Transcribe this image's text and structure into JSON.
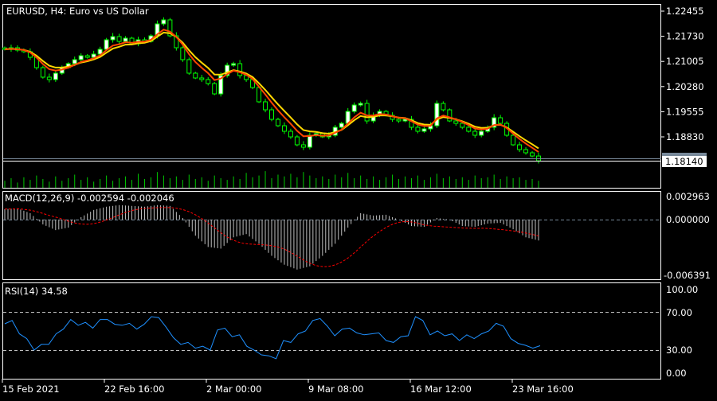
{
  "colors": {
    "background": "#000000",
    "frame": "#ffffff",
    "candle": "#00ff00",
    "bull_body": "#ffffff",
    "bear_body": "#000000",
    "ma_fast": "#ff4500",
    "ma_slow": "#ffd700",
    "volume": "#00c800",
    "macd_hist": "#c0c0c0",
    "macd_signal": "#ff0000",
    "rsi": "#1e90ff",
    "level": "#c0c0c0"
  },
  "header": {
    "title": "EURUSD, H4:  Euro vs US Dollar"
  },
  "chart_data": [
    {
      "type": "candlestick",
      "title": "EURUSD, H4:  Euro vs US Dollar",
      "ylim": [
        1.1814,
        1.2268
      ],
      "y_ticks": [
        "1.22455",
        "1.21730",
        "1.21005",
        "1.20280",
        "1.19555",
        "1.18830"
      ],
      "current_price": "1.18140",
      "current_price_value": 1.1814,
      "closes": [
        1.21354,
        1.214,
        1.21331,
        1.21285,
        1.21124,
        1.20826,
        1.20551,
        1.20482,
        1.20666,
        1.20826,
        1.20941,
        1.21056,
        1.2117,
        1.21124,
        1.21216,
        1.21354,
        1.21629,
        1.21721,
        1.21583,
        1.21675,
        1.21514,
        1.21629,
        1.21583,
        1.21744,
        1.22088,
        1.22203,
        1.21744,
        1.214,
        1.21056,
        1.20666,
        1.20528,
        1.20482,
        1.20367,
        1.20069,
        1.20597,
        1.20895,
        1.20941,
        1.20597,
        1.20482,
        1.20253,
        1.1984,
        1.1961,
        1.19335,
        1.19151,
        1.18991,
        1.1883,
        1.18601,
        1.18532,
        1.18876,
        1.18922,
        1.1883,
        1.18876,
        1.19106,
        1.1922,
        1.19564,
        1.19748,
        1.19794,
        1.19289,
        1.1945,
        1.19564,
        1.1945,
        1.19335,
        1.19289,
        1.19335,
        1.19106,
        1.18991,
        1.1906,
        1.19151,
        1.19794,
        1.1961,
        1.19289,
        1.1922,
        1.19106,
        1.18991,
        1.18876,
        1.18991,
        1.19106,
        1.19381,
        1.1922,
        1.18876,
        1.18601,
        1.18463,
        1.18371,
        1.18278,
        1.1814
      ],
      "volume_levels_pct": [
        40,
        55,
        30,
        60,
        45,
        70,
        50,
        35,
        65,
        40,
        55,
        75,
        45,
        60,
        35,
        50,
        70,
        40,
        55,
        65,
        45,
        80,
        50,
        60,
        90,
        70,
        55,
        65,
        45,
        75,
        50,
        60,
        40,
        70,
        55,
        45,
        65,
        50,
        85,
        60,
        70,
        95,
        55,
        75,
        65,
        80,
        60,
        90,
        70,
        55,
        65,
        50,
        75,
        60,
        85,
        55,
        70,
        50,
        65,
        45,
        60,
        75,
        50,
        65,
        55,
        70,
        45,
        60,
        80,
        55,
        65,
        50,
        60,
        45,
        70,
        55,
        60,
        75,
        50,
        65,
        55,
        60,
        45,
        50,
        40
      ],
      "moving_averages": [
        {
          "kind": "fast"
        },
        {
          "kind": "slow"
        }
      ]
    },
    {
      "type": "bar",
      "label": "MACD(12,26,9) -0.002594 -0.002046",
      "ylim": [
        -0.006391,
        0.002963
      ],
      "y_ticks": [
        "0.002963",
        "0.000000",
        "-0.006391"
      ],
      "main": [
        0.0013,
        0.0014,
        0.0008,
        -0.0006,
        -0.0013,
        -0.001,
        0.0003,
        0.0012,
        0.0016,
        0.0018,
        0.0017,
        0.0016,
        0.0018,
        0.0017,
        0.0002,
        -0.002,
        -0.0034,
        -0.0036,
        -0.0022,
        -0.0018,
        -0.003,
        -0.0045,
        -0.0056,
        -0.0062,
        -0.0058,
        -0.0045,
        -0.003,
        -0.001,
        0.0008,
        0.0005,
        0.0006,
        0.0,
        -0.0008,
        -0.0009,
        0.0002,
        0.0,
        -0.0008,
        -0.0009,
        -0.0005,
        -0.0004,
        -0.0012,
        -0.0022,
        -0.002594
      ],
      "signal_last": -0.002046
    },
    {
      "type": "line",
      "label": "RSI(14) 34.58",
      "ylim": [
        0,
        100
      ],
      "y_ticks": [
        "100.00",
        "70.00",
        "30.00",
        "0.00"
      ],
      "levels": [
        70,
        30
      ],
      "values": [
        57.5,
        61,
        47,
        42,
        30,
        36,
        36,
        47,
        52,
        62,
        56,
        59,
        53,
        62,
        62,
        57,
        56,
        58,
        52,
        57,
        65,
        64,
        54,
        43,
        36,
        38,
        32,
        34,
        30,
        51,
        53,
        44,
        46,
        34,
        30,
        25,
        24,
        21,
        40,
        38,
        47,
        50,
        61,
        63,
        55,
        45,
        52,
        53,
        48,
        46,
        47,
        48,
        40,
        38,
        44,
        45,
        65,
        61,
        46,
        50,
        45,
        47,
        40,
        46,
        42,
        47,
        50,
        58,
        55,
        42,
        37,
        35,
        32,
        34.58
      ]
    }
  ],
  "time_axis": {
    "labels": [
      "15 Feb 2021",
      "22 Feb 16:00",
      "2 Mar 00:00",
      "9 Mar 08:00",
      "16 Mar 12:00",
      "23 Mar 16:00"
    ]
  }
}
